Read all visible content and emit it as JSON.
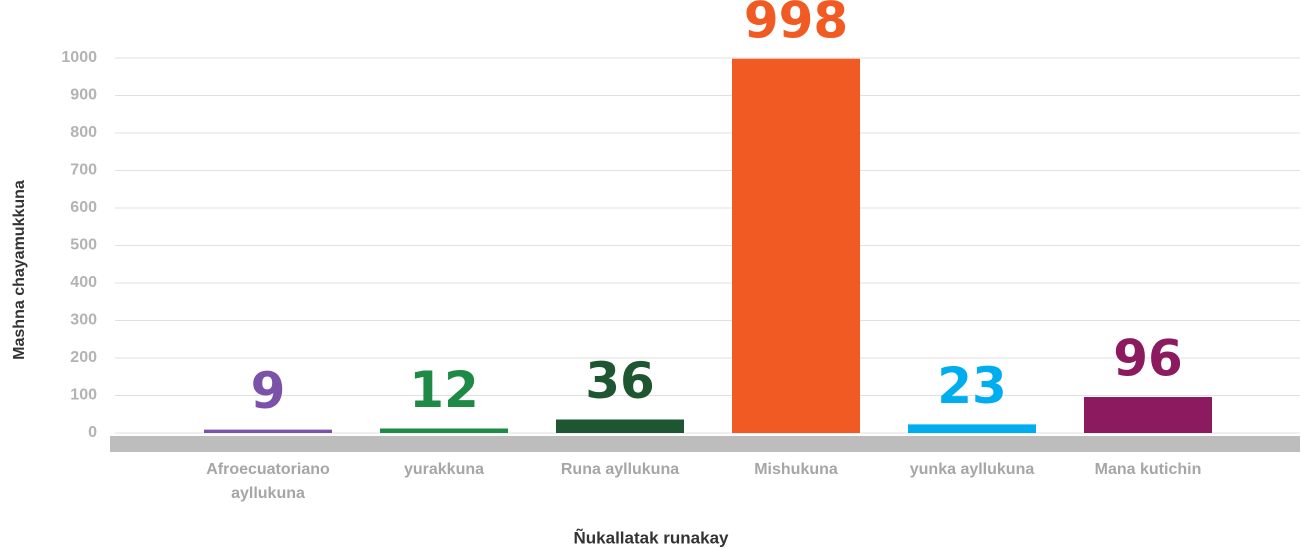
{
  "chart_data": {
    "type": "bar",
    "categories": [
      "Afroecuatoriano ayllukuna",
      "yurakkuna",
      "Runa ayllukuna",
      "Mishukuna",
      "yunka ayllukuna",
      "Mana kutichin"
    ],
    "values": [
      9,
      12,
      36,
      998,
      23,
      96
    ],
    "colors": [
      "#7b52a8",
      "#1f8a45",
      "#1e5631",
      "#f15a22",
      "#00aeef",
      "#8b1a5e"
    ],
    "x_label": "Ñukallatak runakay",
    "y_label": "Mashna chayamukkuna",
    "ylim": [
      0,
      1000
    ],
    "yticks": [
      0,
      100,
      200,
      300,
      400,
      500,
      600,
      700,
      800,
      900,
      1000
    ],
    "grid": true
  }
}
